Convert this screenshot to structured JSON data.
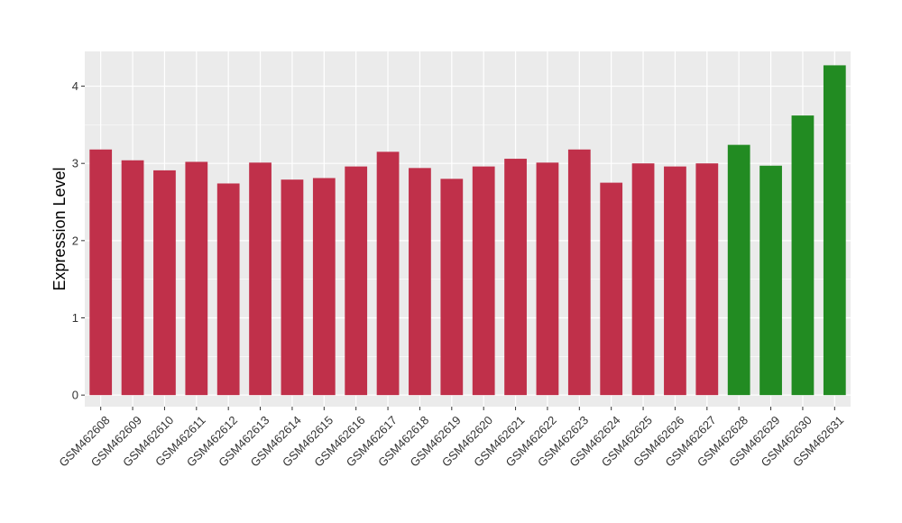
{
  "chart_data": {
    "type": "bar",
    "title": "",
    "xlabel": "",
    "ylabel": "Expression Level",
    "ylim": [
      -0.15,
      4.45
    ],
    "yticks": [
      0,
      1,
      2,
      3,
      4
    ],
    "grid": true,
    "categories": [
      "GSM462608",
      "GSM462609",
      "GSM462610",
      "GSM462611",
      "GSM462612",
      "GSM462613",
      "GSM462614",
      "GSM462615",
      "GSM462616",
      "GSM462617",
      "GSM462618",
      "GSM462619",
      "GSM462620",
      "GSM462621",
      "GSM462622",
      "GSM462623",
      "GSM462624",
      "GSM462625",
      "GSM462626",
      "GSM462627",
      "GSM462628",
      "GSM462629",
      "GSM462630",
      "GSM462631"
    ],
    "values": [
      3.18,
      3.04,
      2.91,
      3.02,
      2.74,
      3.01,
      2.79,
      2.81,
      2.96,
      3.15,
      2.94,
      2.8,
      2.96,
      3.06,
      3.01,
      3.18,
      2.75,
      3.0,
      2.96,
      3.0,
      3.24,
      2.97,
      3.62,
      4.27
    ],
    "bar_colors": [
      "#c0304a",
      "#c0304a",
      "#c0304a",
      "#c0304a",
      "#c0304a",
      "#c0304a",
      "#c0304a",
      "#c0304a",
      "#c0304a",
      "#c0304a",
      "#c0304a",
      "#c0304a",
      "#c0304a",
      "#c0304a",
      "#c0304a",
      "#c0304a",
      "#c0304a",
      "#c0304a",
      "#c0304a",
      "#c0304a",
      "#228b22",
      "#228b22",
      "#228b22",
      "#228b22"
    ],
    "panel_background": "#ebebeb",
    "grid_color": "#ffffff"
  }
}
